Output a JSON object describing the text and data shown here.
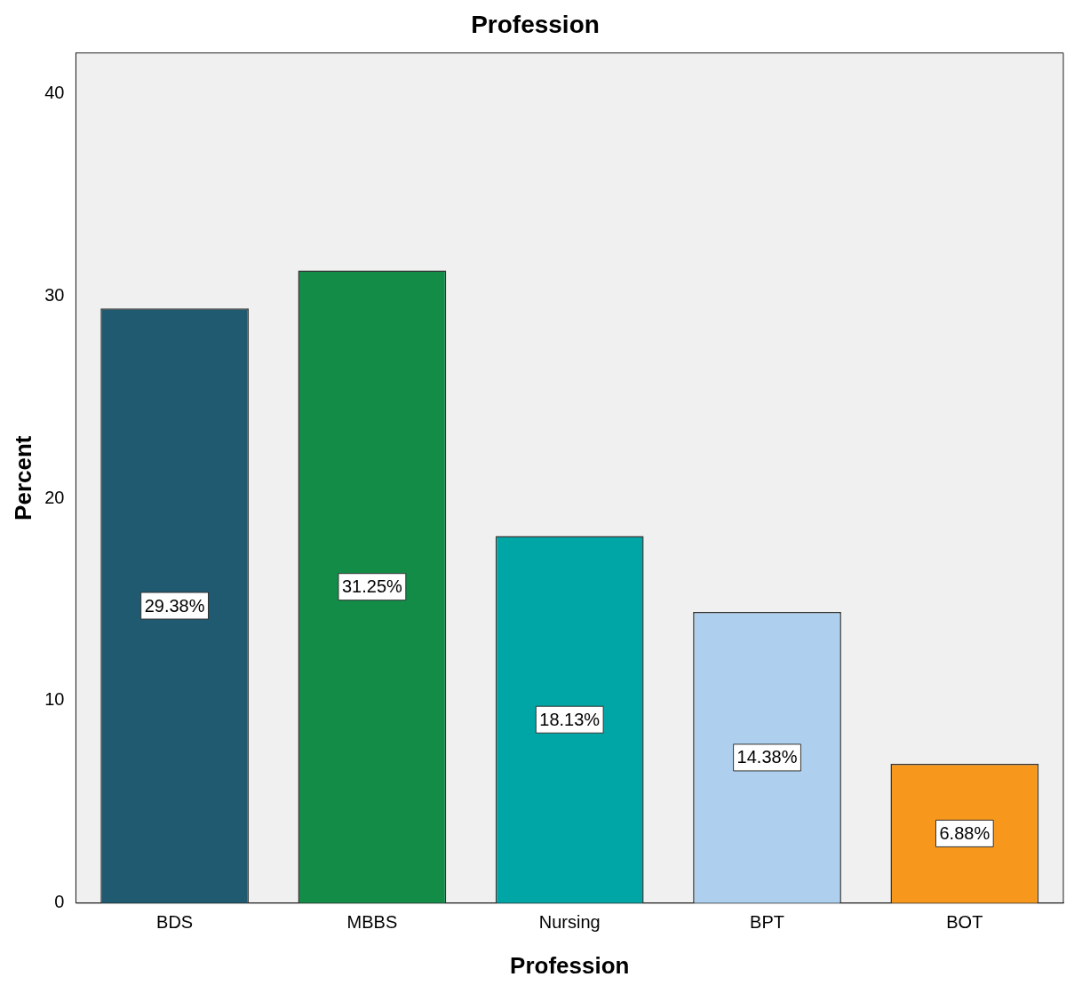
{
  "chart_data": {
    "type": "bar",
    "title": "Profession",
    "xlabel": "Profession",
    "ylabel": "Percent",
    "categories": [
      "BDS",
      "MBBS",
      "Nursing",
      "BPT",
      "BOT"
    ],
    "values": [
      29.38,
      31.25,
      18.13,
      14.38,
      6.88
    ],
    "colors": [
      "#1f5a70",
      "#128c47",
      "#00a6a6",
      "#aed0ee",
      "#f7981d"
    ],
    "value_labels": [
      "29.38%",
      "31.25%",
      "18.13%",
      "14.38%",
      "6.88%"
    ],
    "ylim": [
      0,
      42
    ],
    "yticks": [
      0,
      10,
      20,
      30,
      40
    ],
    "grid": false,
    "legend": false
  }
}
